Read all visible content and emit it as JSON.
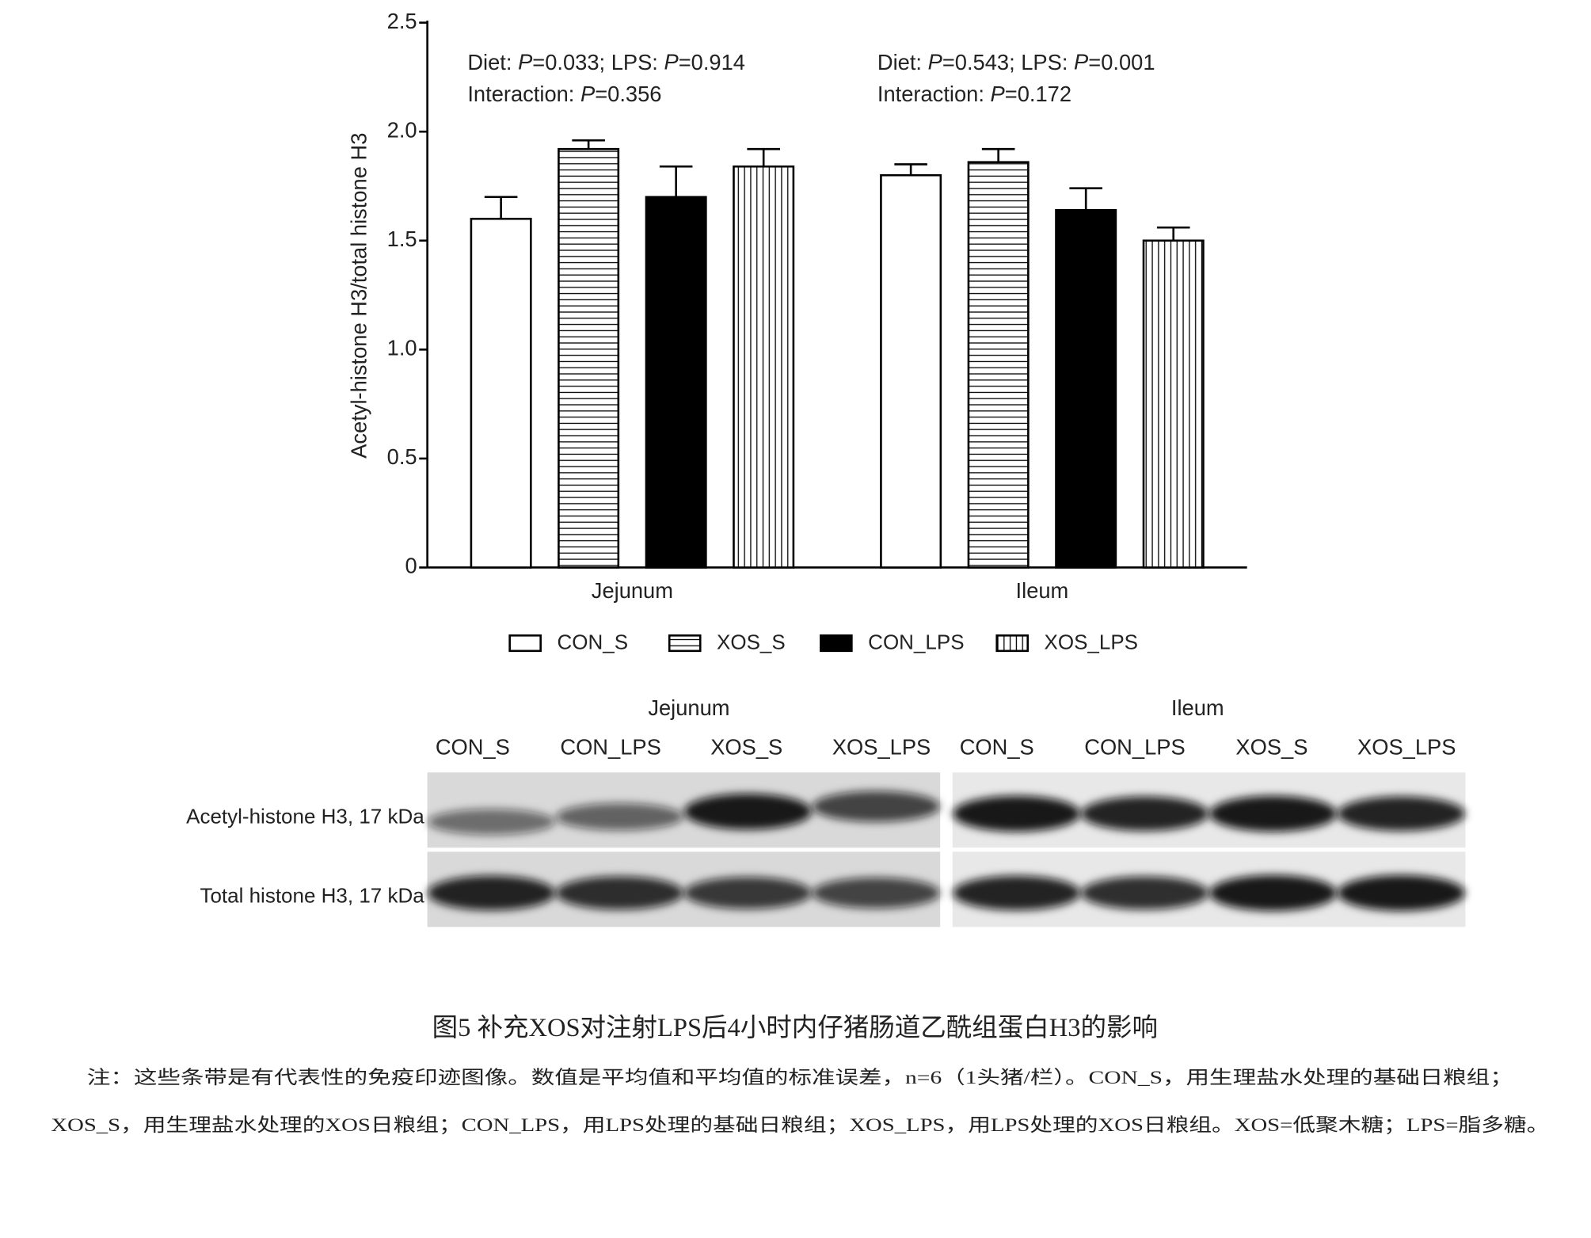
{
  "chart_data": {
    "type": "bar",
    "y_label": "Acetyl-histone H3/total histone H3",
    "categories": [
      "Jejunum",
      "Ileum"
    ],
    "series": [
      {
        "name": "CON_S",
        "color": "#ffffff",
        "pattern": "none",
        "values": [
          1.6,
          1.8
        ],
        "errors": [
          0.1,
          0.05
        ]
      },
      {
        "name": "XOS_S",
        "color": "#ffffff",
        "pattern": "horizontal",
        "values": [
          1.92,
          1.86
        ],
        "errors": [
          0.04,
          0.06
        ]
      },
      {
        "name": "CON_LPS",
        "color": "#000000",
        "pattern": "none",
        "values": [
          1.7,
          1.64
        ],
        "errors": [
          0.14,
          0.1
        ]
      },
      {
        "name": "XOS_LPS",
        "color": "#ffffff",
        "pattern": "vertical",
        "values": [
          1.84,
          1.5
        ],
        "errors": [
          0.08,
          0.06
        ]
      }
    ],
    "ylim": [
      0,
      2.5
    ],
    "yticks": [
      0,
      0.5,
      {
        "value": 1,
        "label": "1.0"
      },
      1.5,
      {
        "value": 2,
        "label": "2.0"
      },
      2.5
    ],
    "annotations": [
      {
        "lines": [
          "Diet: P=0.033; LPS: P=0.914",
          "Interaction: P=0.356"
        ]
      },
      {
        "lines": [
          "Diet: P=0.543; LPS: P=0.001",
          "Interaction: P=0.172"
        ]
      }
    ],
    "legend": "bottom"
  },
  "blot": {
    "groups": [
      {
        "label": "Jejunum",
        "lanes": [
          "CON_S",
          "CON_LPS",
          "XOS_S",
          "XOS_LPS"
        ]
      },
      {
        "label": "Ileum",
        "lanes": [
          "CON_S",
          "CON_LPS",
          "XOS_S",
          "XOS_LPS"
        ]
      }
    ],
    "rows": [
      "Acetyl-histone H3, 17 kDa",
      "Total histone H3, 17 kDa"
    ]
  },
  "caption": {
    "title": "图5 补充XOS对注射LPS后4小时内仔猪肠道乙酰组蛋白H3的影响",
    "note": [
      "注：这些条带是有代表性的免疫印迹图像。数值是平均值和平均值的标准误差，n=6（1头猪/栏）。CON_S，用生理盐水处理的基础日粮组；",
      "XOS_S，用生理盐水处理的XOS日粮组；CON_LPS，用LPS处理的基础日粮组；XOS_LPS，用LPS处理的XOS日粮组。XOS=低聚木糖；LPS=脂多糖。"
    ]
  }
}
